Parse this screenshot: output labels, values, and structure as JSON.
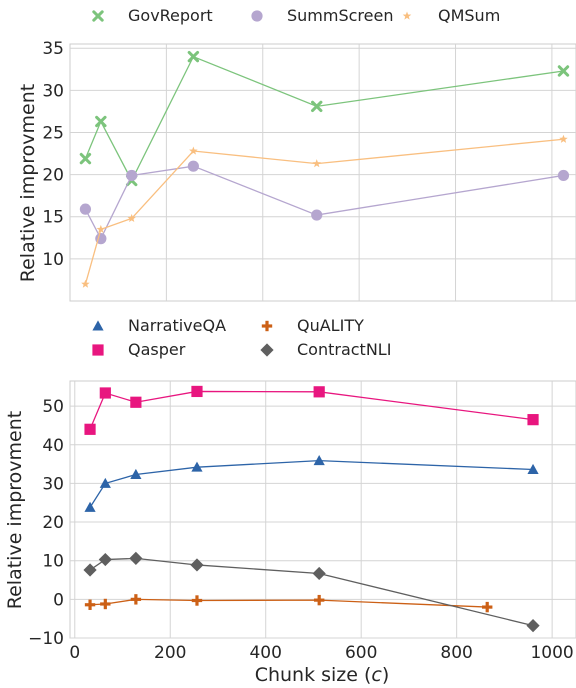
{
  "chart_data": [
    {
      "type": "line",
      "title": "",
      "xlabel": "",
      "ylabel": "Relative improvment",
      "xlim": [
        0,
        1050
      ],
      "ylim": [
        5,
        35.5
      ],
      "xticks": [
        200,
        400,
        600,
        800,
        1000
      ],
      "show_x_tick_labels": false,
      "yticks": [
        10,
        15,
        20,
        25,
        30,
        35
      ],
      "grid": true,
      "legend": "top",
      "series": [
        {
          "name": "GovReport",
          "color": "#7cc47c",
          "marker": "x",
          "x": [
            32,
            64,
            128,
            256,
            512,
            1024
          ],
          "y": [
            21.9,
            26.3,
            19.3,
            34.0,
            28.1,
            32.3
          ]
        },
        {
          "name": "SummScreen",
          "color": "#b5a6cf",
          "marker": "circle",
          "x": [
            32,
            64,
            128,
            256,
            512,
            1024
          ],
          "y": [
            15.9,
            12.4,
            19.9,
            21.0,
            15.2,
            19.9
          ]
        },
        {
          "name": "QMSum",
          "color": "#f9bf80",
          "marker": "star",
          "x": [
            32,
            64,
            128,
            256,
            512,
            1024
          ],
          "y": [
            7.0,
            13.5,
            14.8,
            22.8,
            21.3,
            24.2
          ]
        }
      ]
    },
    {
      "type": "line",
      "title": "",
      "xlabel": "Chunk size (c)",
      "ylabel": "Relative improvment",
      "xlim": [
        -10,
        1050
      ],
      "ylim": [
        -10,
        56.5
      ],
      "xticks": [
        0,
        200,
        400,
        600,
        800,
        1000
      ],
      "yticks": [
        -10,
        0,
        10,
        20,
        30,
        40,
        50
      ],
      "grid": true,
      "legend": "top",
      "series": [
        {
          "name": "NarrativeQA",
          "color": "#2d64a8",
          "marker": "triangle",
          "x": [
            32,
            64,
            128,
            256,
            512,
            960
          ],
          "y": [
            23.8,
            30.0,
            32.3,
            34.2,
            35.9,
            33.6
          ]
        },
        {
          "name": "Qasper",
          "color": "#e8167f",
          "marker": "square",
          "x": [
            32,
            64,
            128,
            256,
            512,
            960
          ],
          "y": [
            44.0,
            53.4,
            51.0,
            53.8,
            53.7,
            46.5
          ]
        },
        {
          "name": "QuALITY",
          "color": "#cc6016",
          "marker": "plus",
          "x": [
            32,
            64,
            128,
            256,
            512,
            864
          ],
          "y": [
            -1.4,
            -1.2,
            0.0,
            -0.3,
            -0.2,
            -2.0
          ]
        },
        {
          "name": "ContractNLI",
          "color": "#5f5f5f",
          "marker": "diamond",
          "x": [
            32,
            64,
            128,
            256,
            512,
            960
          ],
          "y": [
            7.6,
            10.3,
            10.6,
            8.9,
            6.7,
            -6.8
          ]
        }
      ]
    }
  ]
}
